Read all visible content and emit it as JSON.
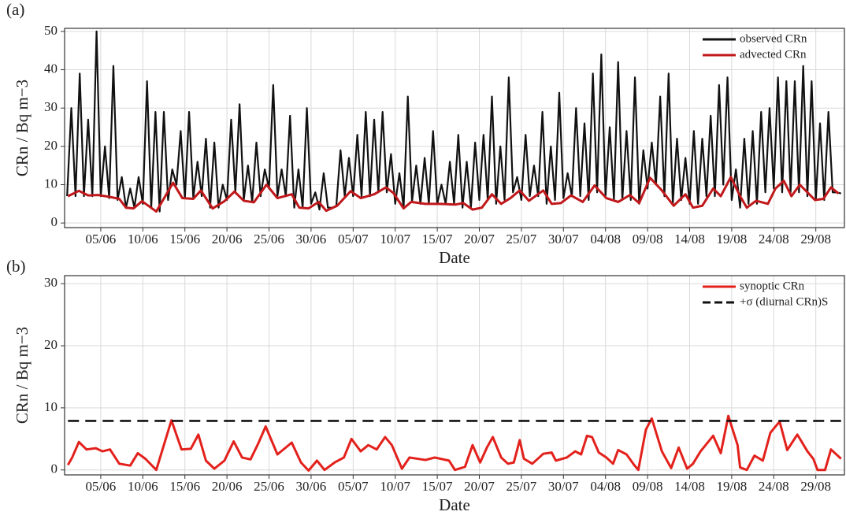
{
  "chart_data": [
    {
      "type": "line",
      "panel": "(a)",
      "x_label": "Date",
      "y_label": "CRn / Bq m−3",
      "legend": "upper right",
      "grid": true,
      "xlim": [
        0.7,
        93.4
      ],
      "ylim": [
        -1.2,
        50.8
      ],
      "yticks": [
        0,
        10,
        20,
        30,
        40,
        50
      ],
      "xticks": [
        {
          "value": 5,
          "label": "05/06"
        },
        {
          "value": 10,
          "label": "10/06"
        },
        {
          "value": 15,
          "label": "15/06"
        },
        {
          "value": 20,
          "label": "20/06"
        },
        {
          "value": 25,
          "label": "25/06"
        },
        {
          "value": 30,
          "label": "30/06"
        },
        {
          "value": 35,
          "label": "05/07"
        },
        {
          "value": 40,
          "label": "10/07"
        },
        {
          "value": 45,
          "label": "15/07"
        },
        {
          "value": 50,
          "label": "20/07"
        },
        {
          "value": 55,
          "label": "25/07"
        },
        {
          "value": 60,
          "label": "30/07"
        },
        {
          "value": 65,
          "label": "04/08"
        },
        {
          "value": 70,
          "label": "09/08"
        },
        {
          "value": 75,
          "label": "14/08"
        },
        {
          "value": 80,
          "label": "19/08"
        },
        {
          "value": 85,
          "label": "24/08"
        },
        {
          "value": 90,
          "label": "29/08"
        }
      ],
      "series": [
        {
          "name": "observed CRn",
          "color": "#111111",
          "x": [
            1,
            1.5,
            2,
            2.5,
            3,
            3.5,
            4,
            4.5,
            5,
            5.5,
            6,
            6.5,
            7,
            7.5,
            8,
            8.5,
            9,
            9.5,
            10,
            10.5,
            11,
            11.5,
            12,
            12.5,
            13,
            13.5,
            14,
            14.5,
            15,
            15.5,
            16,
            16.5,
            17,
            17.5,
            18,
            18.5,
            19,
            19.5,
            20,
            20.5,
            21,
            21.5,
            22,
            22.5,
            23,
            23.5,
            24,
            24.5,
            25,
            25.5,
            26,
            26.5,
            27,
            27.5,
            28,
            28.5,
            29,
            29.5,
            30,
            30.5,
            31,
            31.5,
            32,
            32.5,
            33,
            33.5,
            34,
            34.5,
            35,
            35.5,
            36,
            36.5,
            37,
            37.5,
            38,
            38.5,
            39,
            39.5,
            40,
            40.5,
            41,
            41.5,
            42,
            42.5,
            43,
            43.5,
            44,
            44.5,
            45,
            45.5,
            46,
            46.5,
            47,
            47.5,
            48,
            48.5,
            49,
            49.5,
            50,
            50.5,
            51,
            51.5,
            52,
            52.5,
            53,
            53.5,
            54,
            54.5,
            55,
            55.5,
            56,
            56.5,
            57,
            57.5,
            58,
            58.5,
            59,
            59.5,
            60,
            60.5,
            61,
            61.5,
            62,
            62.5,
            63,
            63.5,
            64,
            64.5,
            65,
            65.5,
            66,
            66.5,
            67,
            67.5,
            68,
            68.5,
            69,
            69.5,
            70,
            70.5,
            71,
            71.5,
            72,
            72.5,
            73,
            73.5,
            74,
            74.5,
            75,
            75.5,
            76,
            76.5,
            77,
            77.5,
            78,
            78.5,
            79,
            79.5,
            80,
            80.5,
            81,
            81.5,
            82,
            82.5,
            83,
            83.5,
            84,
            84.5,
            85,
            85.5,
            86,
            86.5,
            87,
            87.5,
            88,
            88.5,
            89,
            89.5,
            90,
            90.5,
            91,
            91.5,
            92,
            92.5,
            93
          ],
          "values": [
            7,
            30,
            7,
            39,
            7,
            27,
            7,
            50,
            7,
            20,
            6.5,
            41,
            6,
            12,
            4,
            9,
            4,
            12,
            5,
            37,
            4,
            29,
            3,
            29,
            6,
            14,
            10,
            24,
            6.5,
            29,
            6.5,
            16,
            7,
            22,
            4,
            21,
            4,
            10,
            6,
            27,
            8,
            31,
            6,
            15,
            5.5,
            21,
            7,
            14,
            9,
            36,
            7,
            14,
            7,
            28,
            4,
            14,
            4,
            30,
            5,
            8,
            3.5,
            13,
            4,
            4,
            4.5,
            19,
            7,
            17,
            7,
            23,
            7,
            29,
            7,
            27,
            8,
            29,
            8,
            18,
            5,
            13,
            4,
            33,
            5.5,
            15,
            5,
            17,
            5,
            24,
            5,
            10,
            5,
            16,
            5,
            23,
            4,
            16,
            4,
            21,
            6,
            23,
            6,
            33,
            5,
            20,
            6,
            38,
            8,
            12,
            6,
            23,
            7,
            15,
            7,
            29,
            5,
            20,
            6,
            34,
            6.5,
            13,
            7,
            30,
            7,
            26,
            6,
            39,
            8,
            44,
            7,
            25,
            6,
            42,
            6,
            24,
            6,
            38,
            5,
            19,
            9,
            21,
            10,
            33,
            7,
            39,
            5,
            22,
            6,
            17,
            5,
            24,
            5,
            22,
            7,
            28,
            7,
            36,
            10,
            38,
            6,
            14,
            4,
            22,
            5,
            24,
            5,
            29,
            8,
            30,
            9,
            38,
            8,
            37,
            8,
            37,
            8,
            41,
            7,
            37,
            6,
            26,
            6,
            29,
            8,
            8,
            7.7
          ]
        },
        {
          "name": "advected CRn",
          "color": "#c0181b",
          "x": [
            1.1,
            2.4,
            3.5,
            4.7,
            6.1,
            7.2,
            8.0,
            8.9,
            9.9,
            11.6,
            13.6,
            14.7,
            16.0,
            16.9,
            18.3,
            19.7,
            20.9,
            22.0,
            23.2,
            24.7,
            26.0,
            27.7,
            28.6,
            29.7,
            30.9,
            31.8,
            33.1,
            34.7,
            35.9,
            37.5,
            38.9,
            39.8,
            41.0,
            41.9,
            43.6,
            45.4,
            47.1,
            48.1,
            49.2,
            50.3,
            51.5,
            52.6,
            53.7,
            54.8,
            55.9,
            57.6,
            58.6,
            59.7,
            60.9,
            62.3,
            63.7,
            65.1,
            66.5,
            67.9,
            69.0,
            70.3,
            71.7,
            73.1,
            74.5,
            75.4,
            76.5,
            77.8,
            78.7,
            79.9,
            81.0,
            81.8,
            82.9,
            84.3,
            85.2,
            86.2,
            87.1,
            88.1,
            89.9,
            90.9,
            91.8,
            92.7
          ],
          "values": [
            7,
            8.4,
            7.2,
            7.3,
            6.8,
            6.3,
            4,
            3.8,
            5.7,
            3,
            10.5,
            6.5,
            6.3,
            8.5,
            3.8,
            5.7,
            8.2,
            5.8,
            5.4,
            10,
            6.5,
            7.5,
            4,
            3.8,
            5.5,
            3.2,
            4.5,
            8.3,
            6.5,
            7.5,
            9.3,
            7.8,
            3.8,
            5.5,
            5,
            5,
            4.8,
            5.2,
            3.5,
            4,
            7.5,
            5,
            6.5,
            8.5,
            5.8,
            8.5,
            5,
            5.2,
            7.2,
            5.5,
            9.8,
            6.5,
            5.5,
            7.3,
            5.2,
            11.8,
            8.5,
            4.5,
            7.5,
            4,
            4.5,
            9,
            7,
            12,
            7,
            4,
            5.8,
            5,
            9,
            11,
            7,
            10,
            6,
            6.3,
            9.3,
            7.7
          ]
        }
      ]
    },
    {
      "type": "line",
      "panel": "(b)",
      "x_label": "Date",
      "y_label": "CRn / Bq m−3",
      "legend": "upper right",
      "grid": true,
      "xlim": [
        0.7,
        93.4
      ],
      "ylim": [
        -0.8,
        31.3
      ],
      "yticks": [
        0,
        10,
        20,
        30
      ],
      "xticks": [
        {
          "value": 5,
          "label": "05/06"
        },
        {
          "value": 10,
          "label": "10/06"
        },
        {
          "value": 15,
          "label": "15/06"
        },
        {
          "value": 20,
          "label": "20/06"
        },
        {
          "value": 25,
          "label": "25/06"
        },
        {
          "value": 30,
          "label": "30/06"
        },
        {
          "value": 35,
          "label": "05/07"
        },
        {
          "value": 40,
          "label": "10/07"
        },
        {
          "value": 45,
          "label": "15/07"
        },
        {
          "value": 50,
          "label": "20/07"
        },
        {
          "value": 55,
          "label": "25/07"
        },
        {
          "value": 60,
          "label": "30/07"
        },
        {
          "value": 65,
          "label": "04/08"
        },
        {
          "value": 70,
          "label": "09/08"
        },
        {
          "value": 75,
          "label": "14/08"
        },
        {
          "value": 80,
          "label": "19/08"
        },
        {
          "value": 85,
          "label": "24/08"
        },
        {
          "value": 90,
          "label": "29/08"
        }
      ],
      "series": [
        {
          "name": "synoptic CRn",
          "color": "#e3211c",
          "x": [
            1.1,
            1.6,
            2.4,
            3.3,
            4.4,
            5.2,
            6.1,
            7.2,
            8.5,
            9.4,
            10.3,
            11.6,
            13.4,
            14.6,
            15.7,
            16.6,
            17.5,
            18.5,
            19.7,
            20.8,
            21.8,
            22.8,
            23.7,
            24.6,
            26.0,
            27.7,
            28.8,
            29.7,
            30.7,
            31.6,
            32.8,
            33.9,
            34.8,
            35.9,
            36.8,
            37.8,
            38.8,
            39.6,
            40.8,
            41.7,
            43.6,
            44.7,
            46.4,
            47.1,
            48.3,
            49.2,
            50.1,
            50.9,
            51.6,
            52.6,
            53.4,
            54.1,
            54.8,
            55.3,
            56.3,
            57.6,
            58.6,
            59.1,
            60.4,
            61.4,
            62.1,
            62.8,
            63.4,
            64.2,
            65.1,
            65.9,
            66.5,
            67.5,
            68.4,
            68.9,
            69.8,
            70.5,
            71.7,
            72.8,
            73.7,
            74.7,
            75.4,
            76.3,
            77.8,
            78.7,
            79.6,
            80.7,
            81.0,
            81.8,
            82.7,
            83.7,
            84.6,
            85.7,
            86.6,
            87.8,
            89.0,
            89.7,
            90.2,
            91.1,
            91.8,
            93.0
          ],
          "values": [
            0.8,
            2,
            4.5,
            3.3,
            3.5,
            3,
            3.3,
            1,
            0.7,
            2.7,
            1.8,
            0,
            8,
            3.3,
            3.4,
            5.7,
            1.5,
            0.2,
            1.5,
            4.6,
            2,
            1.7,
            4.2,
            7,
            2.5,
            4.4,
            1.2,
            -0.1,
            1.5,
            0,
            1.2,
            2,
            5,
            3,
            4,
            3.3,
            5.3,
            4,
            0.2,
            2,
            1.6,
            2,
            1.5,
            0,
            0.5,
            4,
            1.2,
            3.6,
            5.3,
            2,
            1,
            1.2,
            4.8,
            1.8,
            1,
            2.6,
            2.8,
            1.5,
            2,
            3,
            2.5,
            5.5,
            5.3,
            2.8,
            2,
            1,
            3.2,
            2.5,
            0.8,
            0,
            6.5,
            8.3,
            3,
            0.3,
            3.6,
            0.2,
            1,
            3,
            5.5,
            2.7,
            8.7,
            4,
            0.4,
            0,
            2.3,
            1.5,
            6,
            7.8,
            3.2,
            5.7,
            3,
            1.8,
            0,
            0,
            3.3,
            1.8
          ]
        },
        {
          "name": "+σ (diurnal CRn)S",
          "color": "#111111",
          "dash": true,
          "x": [
            1.1,
            93.0
          ],
          "values": [
            7.9,
            7.9
          ]
        }
      ]
    }
  ]
}
